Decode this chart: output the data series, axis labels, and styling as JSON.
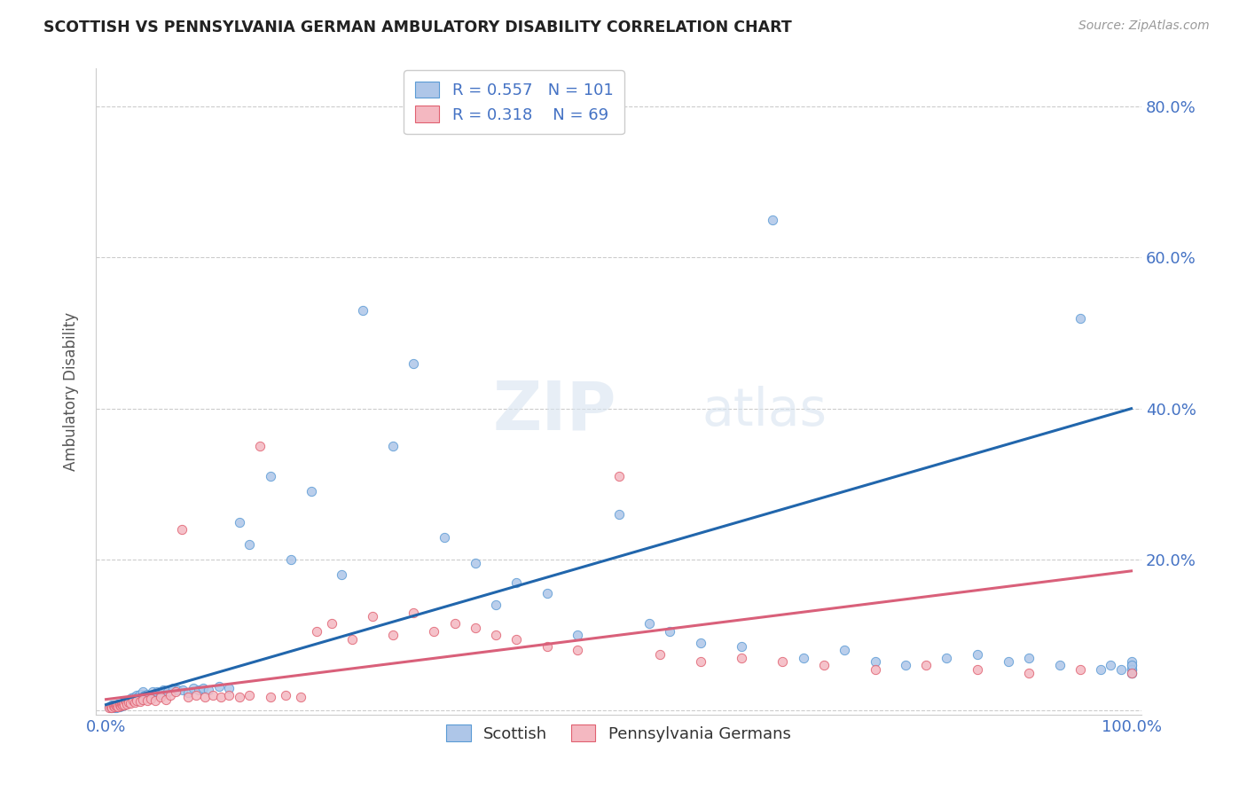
{
  "title": "SCOTTISH VS PENNSYLVANIA GERMAN AMBULATORY DISABILITY CORRELATION CHART",
  "source": "Source: ZipAtlas.com",
  "ylabel": "Ambulatory Disability",
  "watermark": "ZIPatlas",
  "legend_label_1": "Scottish",
  "legend_label_2": "Pennsylvania Germans",
  "R1": 0.557,
  "N1": 101,
  "R2": 0.318,
  "N2": 69,
  "scatter_color_1": "#aec6e8",
  "scatter_edge_1": "#5b9bd5",
  "scatter_color_2": "#f4b8c1",
  "scatter_edge_2": "#e06070",
  "line_color_1": "#2166ac",
  "line_color_2": "#d9607a",
  "legend_face_1": "#aec6e8",
  "legend_face_2": "#f4b8c1",
  "background_color": "#ffffff",
  "grid_color": "#cccccc",
  "title_color": "#222222",
  "axis_label_color": "#555555",
  "tick_label_color": "#4472c4",
  "stat_label_color": "#4472c4",
  "xlim": [
    -0.01,
    1.01
  ],
  "ylim": [
    -0.005,
    0.85
  ],
  "line1_x0": 0.0,
  "line1_y0": 0.008,
  "line1_x1": 1.0,
  "line1_y1": 0.4,
  "line2_x0": 0.0,
  "line2_y0": 0.015,
  "line2_x1": 1.0,
  "line2_y1": 0.185,
  "scottish_x": [
    0.003,
    0.005,
    0.006,
    0.006,
    0.007,
    0.007,
    0.008,
    0.008,
    0.008,
    0.009,
    0.009,
    0.01,
    0.01,
    0.011,
    0.011,
    0.012,
    0.012,
    0.013,
    0.013,
    0.014,
    0.015,
    0.015,
    0.016,
    0.017,
    0.018,
    0.018,
    0.019,
    0.02,
    0.021,
    0.022,
    0.023,
    0.024,
    0.025,
    0.026,
    0.027,
    0.028,
    0.03,
    0.031,
    0.033,
    0.034,
    0.036,
    0.038,
    0.04,
    0.042,
    0.045,
    0.048,
    0.05,
    0.053,
    0.056,
    0.06,
    0.065,
    0.07,
    0.075,
    0.08,
    0.085,
    0.09,
    0.095,
    0.1,
    0.11,
    0.12,
    0.13,
    0.14,
    0.16,
    0.18,
    0.2,
    0.23,
    0.25,
    0.28,
    0.3,
    0.33,
    0.36,
    0.38,
    0.4,
    0.43,
    0.46,
    0.5,
    0.53,
    0.55,
    0.58,
    0.62,
    0.65,
    0.68,
    0.72,
    0.75,
    0.78,
    0.82,
    0.85,
    0.88,
    0.9,
    0.93,
    0.95,
    0.97,
    0.98,
    0.99,
    1.0,
    1.0,
    1.0,
    1.0,
    1.0,
    1.0,
    1.0
  ],
  "scottish_y": [
    0.005,
    0.004,
    0.006,
    0.008,
    0.005,
    0.007,
    0.004,
    0.006,
    0.008,
    0.005,
    0.007,
    0.004,
    0.006,
    0.005,
    0.007,
    0.006,
    0.009,
    0.005,
    0.007,
    0.006,
    0.008,
    0.006,
    0.009,
    0.007,
    0.01,
    0.008,
    0.012,
    0.01,
    0.014,
    0.012,
    0.015,
    0.013,
    0.017,
    0.014,
    0.018,
    0.016,
    0.02,
    0.018,
    0.022,
    0.015,
    0.025,
    0.02,
    0.022,
    0.019,
    0.025,
    0.022,
    0.025,
    0.022,
    0.028,
    0.025,
    0.03,
    0.027,
    0.028,
    0.024,
    0.03,
    0.028,
    0.03,
    0.028,
    0.032,
    0.03,
    0.25,
    0.22,
    0.31,
    0.2,
    0.29,
    0.18,
    0.53,
    0.35,
    0.46,
    0.23,
    0.195,
    0.14,
    0.17,
    0.155,
    0.1,
    0.26,
    0.115,
    0.105,
    0.09,
    0.085,
    0.65,
    0.07,
    0.08,
    0.065,
    0.06,
    0.07,
    0.075,
    0.065,
    0.07,
    0.06,
    0.52,
    0.055,
    0.06,
    0.055,
    0.05,
    0.06,
    0.055,
    0.065,
    0.055,
    0.05,
    0.06
  ],
  "pagerman_x": [
    0.003,
    0.005,
    0.006,
    0.007,
    0.008,
    0.009,
    0.01,
    0.011,
    0.012,
    0.013,
    0.014,
    0.015,
    0.016,
    0.017,
    0.018,
    0.019,
    0.02,
    0.022,
    0.024,
    0.026,
    0.028,
    0.03,
    0.033,
    0.036,
    0.04,
    0.044,
    0.048,
    0.053,
    0.058,
    0.063,
    0.068,
    0.074,
    0.08,
    0.088,
    0.096,
    0.104,
    0.112,
    0.12,
    0.13,
    0.14,
    0.15,
    0.16,
    0.175,
    0.19,
    0.205,
    0.22,
    0.24,
    0.26,
    0.28,
    0.3,
    0.32,
    0.34,
    0.36,
    0.38,
    0.4,
    0.43,
    0.46,
    0.5,
    0.54,
    0.58,
    0.62,
    0.66,
    0.7,
    0.75,
    0.8,
    0.85,
    0.9,
    0.95,
    1.0
  ],
  "pagerman_y": [
    0.004,
    0.005,
    0.004,
    0.006,
    0.005,
    0.007,
    0.006,
    0.008,
    0.005,
    0.007,
    0.006,
    0.009,
    0.007,
    0.01,
    0.008,
    0.012,
    0.009,
    0.011,
    0.01,
    0.013,
    0.011,
    0.014,
    0.012,
    0.015,
    0.013,
    0.016,
    0.014,
    0.018,
    0.015,
    0.02,
    0.025,
    0.24,
    0.018,
    0.02,
    0.018,
    0.02,
    0.018,
    0.02,
    0.018,
    0.02,
    0.35,
    0.018,
    0.02,
    0.018,
    0.105,
    0.115,
    0.095,
    0.125,
    0.1,
    0.13,
    0.105,
    0.115,
    0.11,
    0.1,
    0.095,
    0.085,
    0.08,
    0.31,
    0.075,
    0.065,
    0.07,
    0.065,
    0.06,
    0.055,
    0.06,
    0.055,
    0.05,
    0.055,
    0.05
  ]
}
